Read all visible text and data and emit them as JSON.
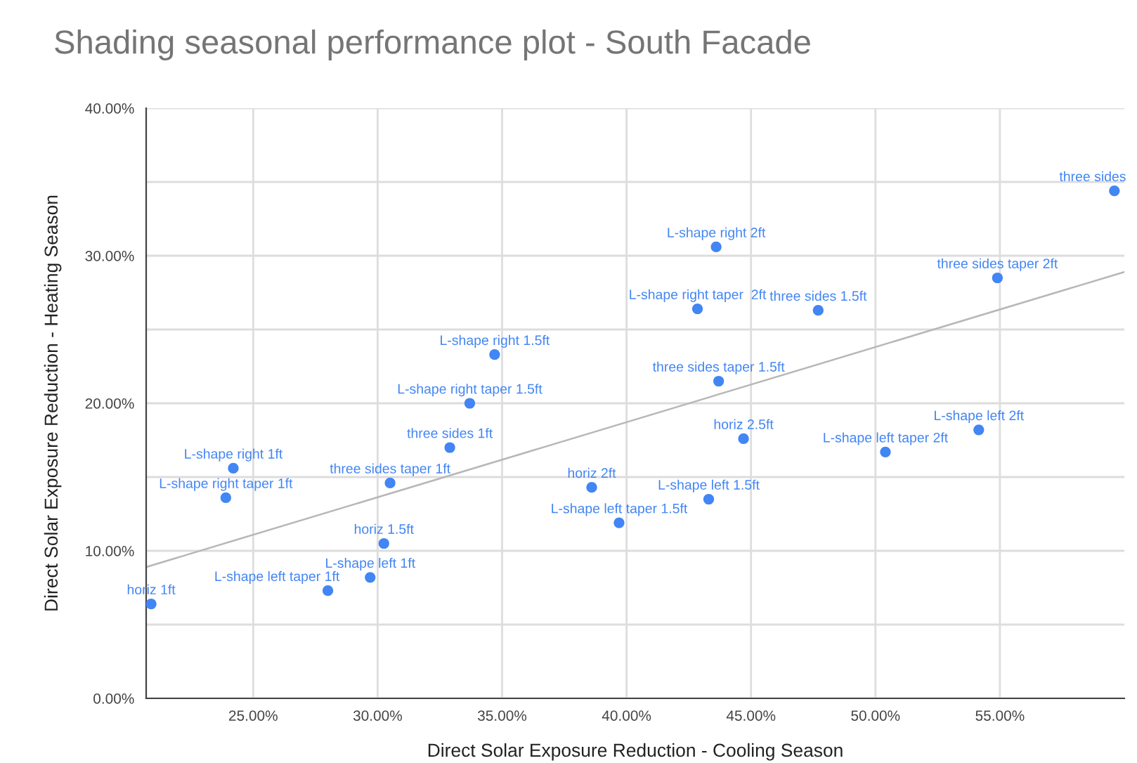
{
  "chart_data": {
    "type": "scatter",
    "title": "Shading seasonal performance plot - South Facade",
    "xlabel": "Direct Solar Exposure Reduction - Cooling Season",
    "ylabel": "Direct Solar Exposure Reduction - Heating Season",
    "series": [
      {
        "color": "#4285f4",
        "marker": "circle",
        "x": [
          20.9,
          23.9,
          24.2,
          28.0,
          29.7,
          30.25,
          30.5,
          32.9,
          33.7,
          34.7,
          38.6,
          39.7,
          43.3,
          44.7,
          43.7,
          42.85,
          43.6,
          47.7,
          50.4,
          54.15,
          54.9,
          59.6
        ],
        "values": [
          6.4,
          13.6,
          15.6,
          7.3,
          8.2,
          10.5,
          14.6,
          17.0,
          20.0,
          23.3,
          14.3,
          11.9,
          13.5,
          17.6,
          21.5,
          26.4,
          30.6,
          26.3,
          16.7,
          18.2,
          28.5,
          34.4
        ],
        "value_labels": [
          "horiz 1ft",
          "L-shape right taper 1ft",
          "L-shape right 1ft",
          "L-shape left taper 1ft",
          "L-shape left 1ft",
          "horiz 1.5ft",
          "three sides taper 1ft",
          "three sides 1ft",
          "L-shape right taper 1.5ft",
          "L-shape right 1.5ft",
          "horiz 2ft",
          "L-shape left taper 1.5ft",
          "L-shape left 1.5ft",
          "horiz 2.5ft",
          "three sides taper 1.5ft",
          "L-shape right taper  2ft",
          "L-shape right 2ft",
          "three sides 1.5ft",
          "L-shape left taper 2ft",
          "L-shape left 2ft",
          "three sides taper 2ft",
          "three sides"
        ]
      },
      {
        "type": "line",
        "color": "#b7b7b7",
        "x": [
          20.7,
          60
        ],
        "values": [
          8.9,
          28.9
        ]
      }
    ],
    "xlim": [
      20.7,
      60
    ],
    "ylim": [
      0,
      40
    ],
    "xticks": [
      {
        "value": 25,
        "label": "25.00%"
      },
      {
        "value": 30,
        "label": "30.00%"
      },
      {
        "value": 35,
        "label": "35.00%"
      },
      {
        "value": 40,
        "label": "40.00%"
      },
      {
        "value": 45,
        "label": "45.00%"
      },
      {
        "value": 50,
        "label": "50.00%"
      },
      {
        "value": 55,
        "label": "55.00%"
      }
    ],
    "yticks": [
      {
        "value": 0,
        "label": "0.00%"
      },
      {
        "value": 5,
        "label": null
      },
      {
        "value": 10,
        "label": "10.00%"
      },
      {
        "value": 15,
        "label": null
      },
      {
        "value": 20,
        "label": "20.00%"
      },
      {
        "value": 25,
        "label": null
      },
      {
        "value": 30,
        "label": "30.00%"
      },
      {
        "value": 35,
        "label": null
      },
      {
        "value": 40,
        "label": "40.00%"
      }
    ],
    "grid": true
  }
}
